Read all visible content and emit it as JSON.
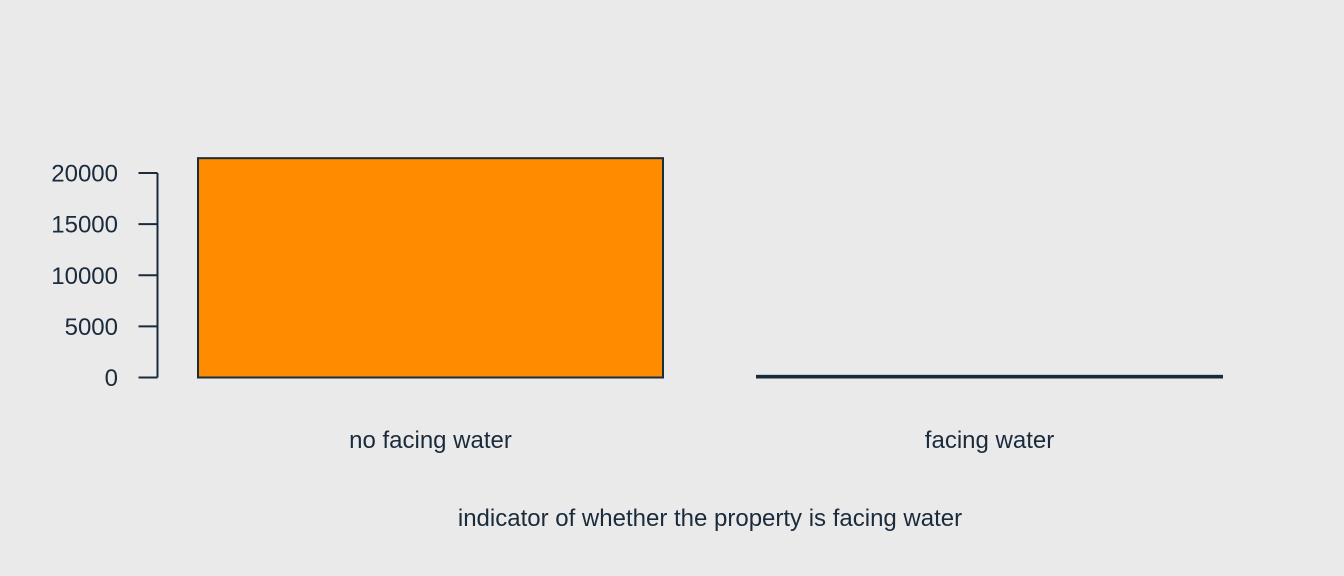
{
  "chart_data": {
    "type": "bar",
    "categories": [
      "no facing water",
      "facing water"
    ],
    "values": [
      21450,
      163
    ],
    "xlabel": "indicator of whether the property is facing water",
    "ylabel": "",
    "ylim": [
      0,
      20000
    ],
    "yticks": [
      0,
      5000,
      10000,
      15000,
      20000
    ],
    "grid": false,
    "colors": {
      "bar_fill": "#ff8c00",
      "stroke": "#1a2b3c",
      "background": "#ebeaea"
    }
  }
}
